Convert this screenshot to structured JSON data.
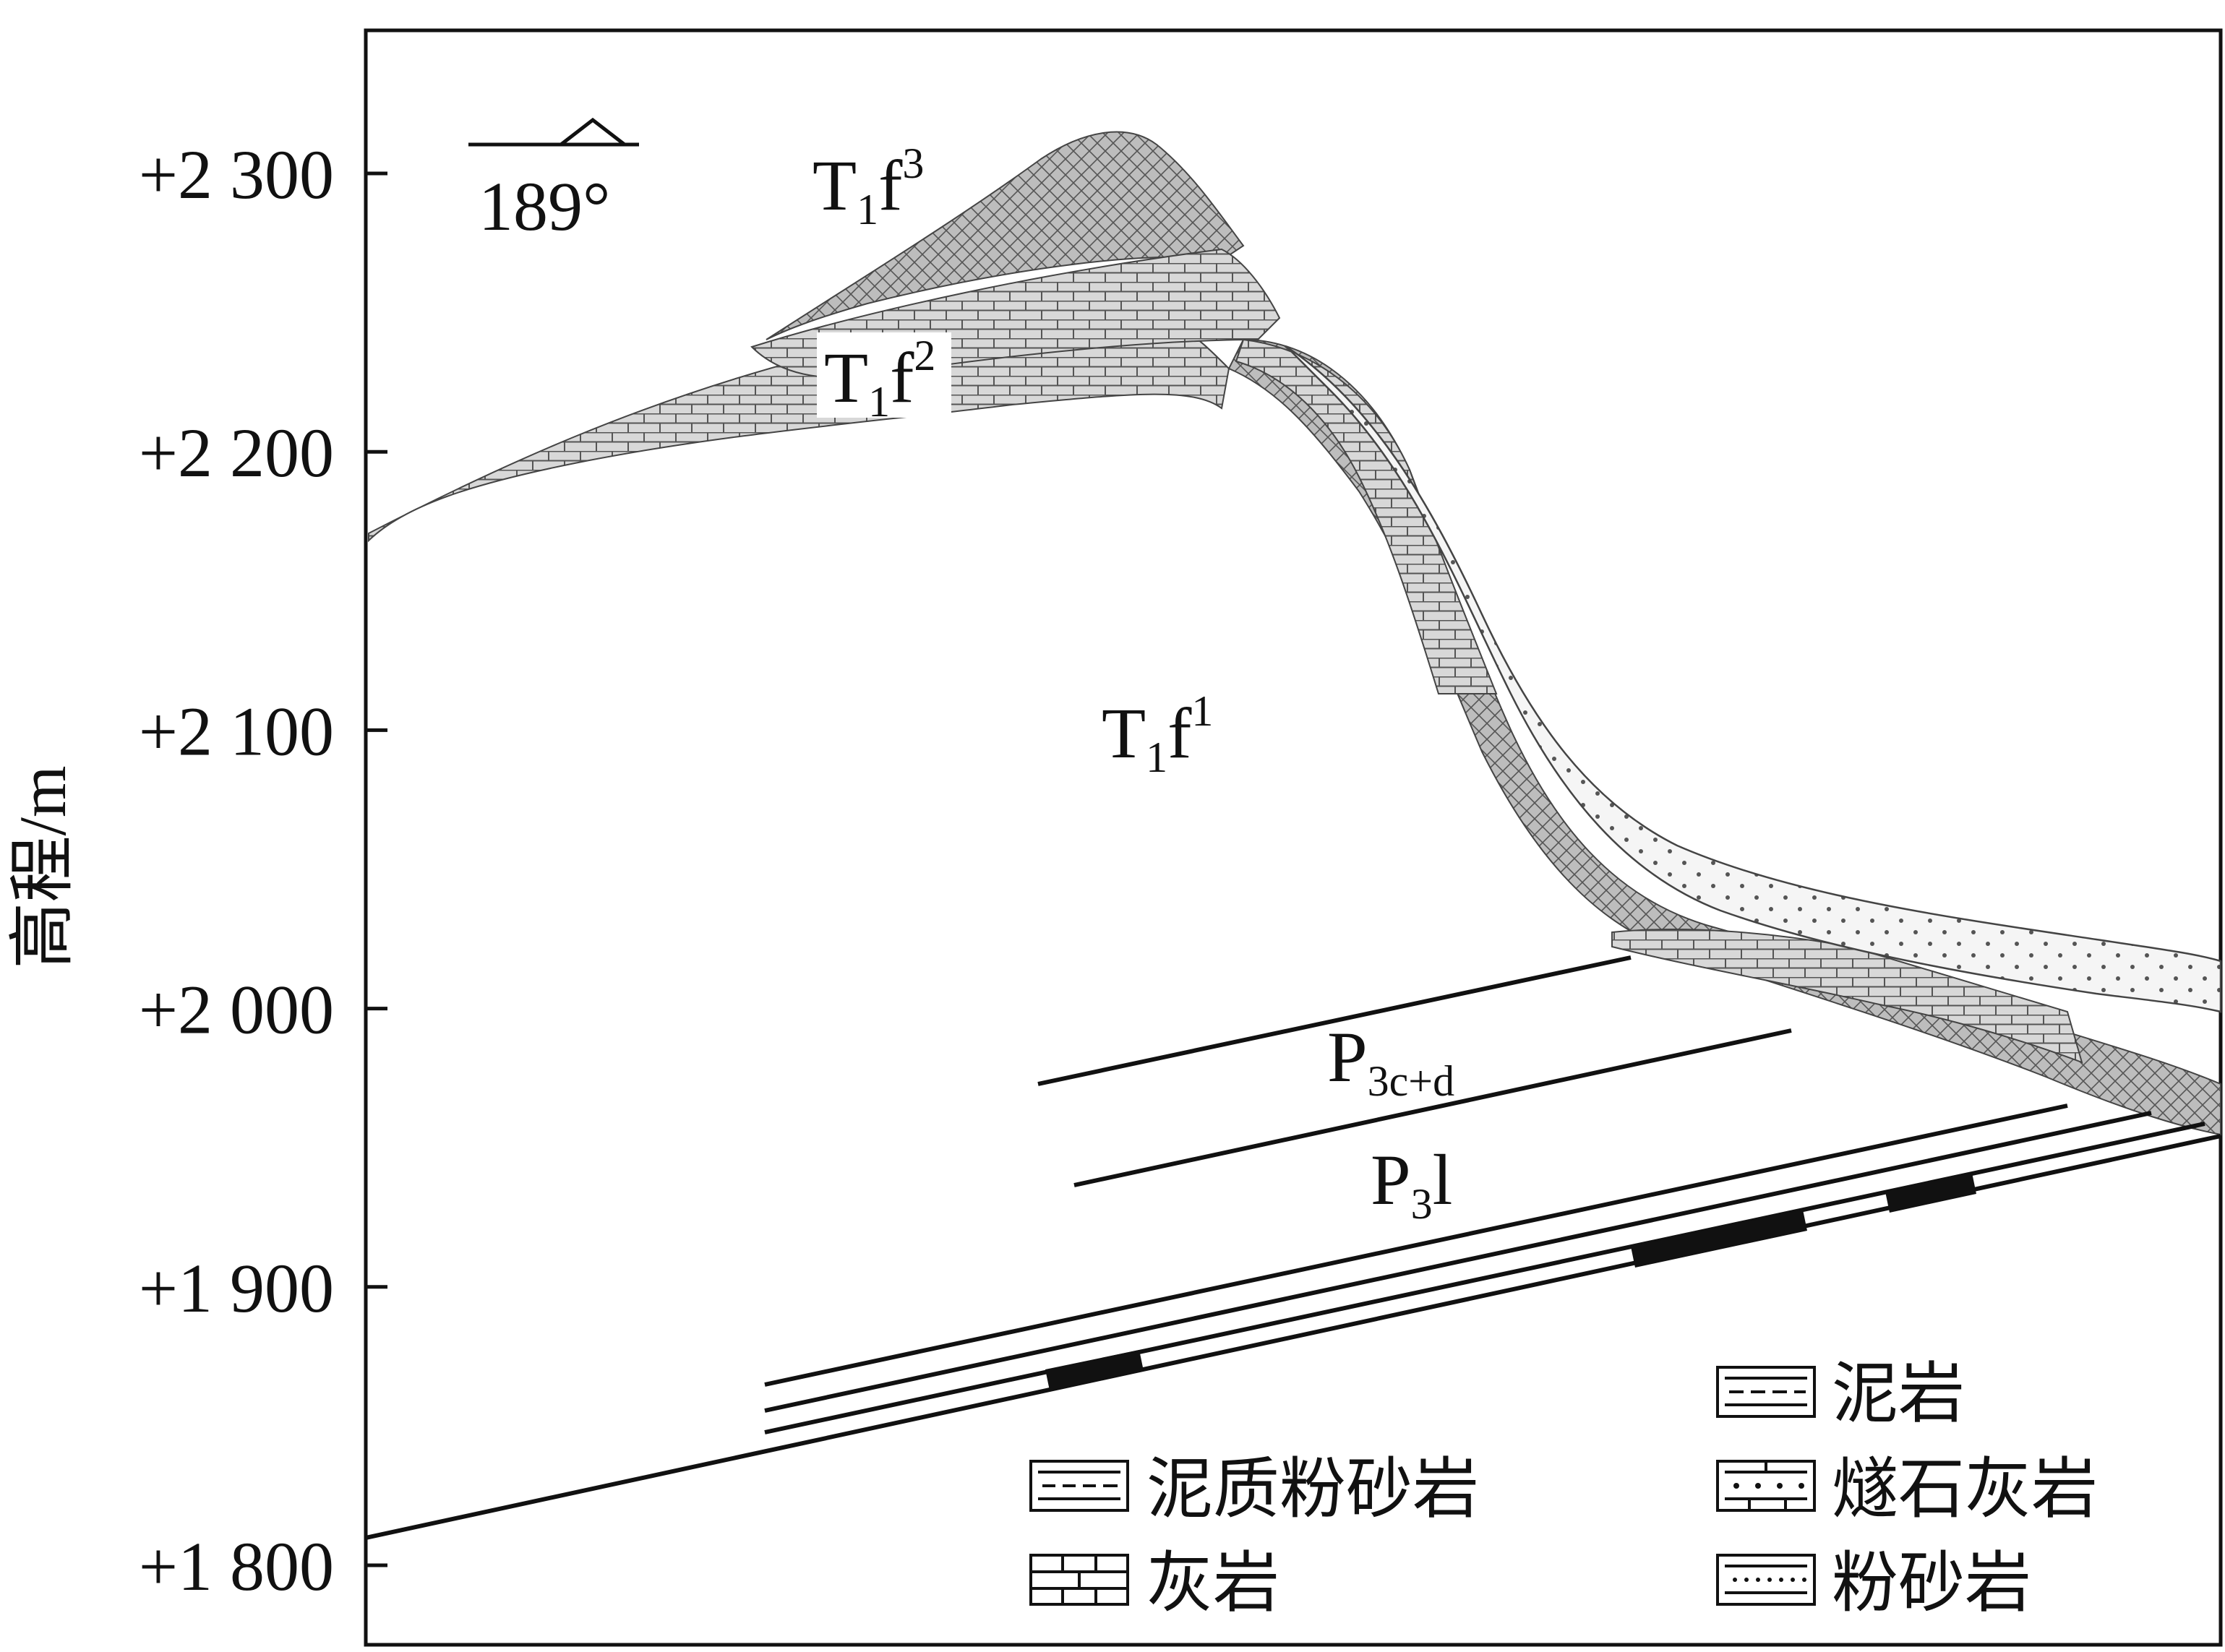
{
  "y_axis": {
    "title": "高程/m",
    "ticks": [
      "+2 300",
      "+2 200",
      "+2 100",
      "+2 000",
      "+1 900",
      "+1 800"
    ],
    "tick_values": [
      2300,
      2200,
      2100,
      2000,
      1900,
      1800
    ]
  },
  "bearing": {
    "value": "189°"
  },
  "units": {
    "T1f3": {
      "main": "T",
      "sub": "1",
      "letter": "f",
      "sup": "3"
    },
    "T1f2": {
      "main": "T",
      "sub": "1",
      "letter": "f",
      "sup": "2"
    },
    "T1f1": {
      "main": "T",
      "sub": "1",
      "letter": "f",
      "sup": "1"
    },
    "P3cd": {
      "main": "P",
      "sub": "3c+d"
    },
    "P3l": {
      "main": "P",
      "sub": "3",
      "letter": "l"
    }
  },
  "legend": {
    "items": [
      {
        "label": "泥岩",
        "pattern": "mudstone"
      },
      {
        "label": "泥质粉砂岩",
        "pattern": "muddy-siltstone"
      },
      {
        "label": "燧石灰岩",
        "pattern": "chert-limestone"
      },
      {
        "label": "灰岩",
        "pattern": "limestone"
      },
      {
        "label": "粉砂岩",
        "pattern": "siltstone"
      }
    ]
  },
  "colors": {
    "ink": "#111111",
    "fill_gray": "#8a8a8a",
    "background": "#ffffff"
  }
}
